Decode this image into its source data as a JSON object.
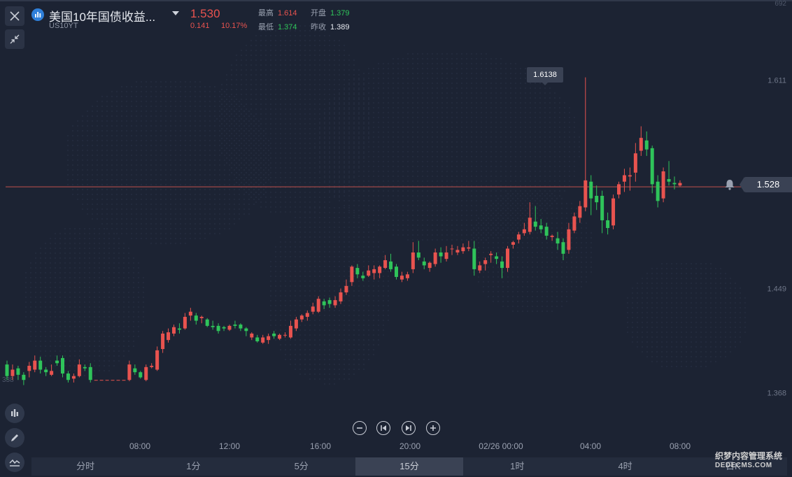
{
  "header": {
    "title": "美国10年国债收益...",
    "symbol": "US10YT",
    "last": "1.530",
    "change": "0.141",
    "change_pct": "10.17%",
    "high_label": "最高",
    "high": "1.614",
    "open_label": "开盘",
    "open": "1.379",
    "low_label": "最低",
    "low": "1.374",
    "prev_close_label": "昨收",
    "prev_close": "1.389"
  },
  "price_tag": "1.528",
  "peak_tooltip": "1.6138",
  "left_edge_label": "338",
  "top_edge_label": "692",
  "timeframes": [
    "分时",
    "1分",
    "5分",
    "15分",
    "1时",
    "4时",
    "日K"
  ],
  "active_timeframe": "15分",
  "watermark": {
    "line1": "织梦内容管理系统",
    "line2": "DEDECMS.COM"
  },
  "colors": {
    "up": "#e8534f",
    "down": "#2fc45a",
    "background": "#1c2333",
    "current_line": "#c0504d"
  },
  "icons": {
    "close": "close-icon",
    "collapse": "collapse-arrows-icon",
    "logo": "bar-chart-logo-icon",
    "indicators": "indicators-icon",
    "draw": "pencil-icon",
    "compare": "compare-icon",
    "zoom_out": "minus-icon",
    "first": "skip-back-icon",
    "last": "skip-forward-icon",
    "zoom_in": "plus-icon",
    "alert": "bell-icon"
  },
  "chart_data": {
    "type": "candlestick",
    "title": "美国10年国债收益...",
    "xlabel": "",
    "ylabel": "",
    "x_ticks": [
      "08:00",
      "12:00",
      "16:00",
      "20:00",
      "02/26 00:00",
      "04:00",
      "08:00"
    ],
    "y_ticks": [
      1.611,
      1.449,
      1.368
    ],
    "ylim": [
      1.32,
      1.672
    ],
    "current_price": 1.528,
    "peak": 1.6138,
    "candles": [
      [
        1.39,
        1.381,
        1.393,
        1.378
      ],
      [
        1.381,
        1.386,
        1.39,
        1.378
      ],
      [
        1.387,
        1.382,
        1.389,
        1.378
      ],
      [
        1.382,
        1.378,
        1.384,
        1.374
      ],
      [
        1.385,
        1.389,
        1.392,
        1.38
      ],
      [
        1.386,
        1.393,
        1.397,
        1.384
      ],
      [
        1.393,
        1.386,
        1.396,
        1.383
      ],
      [
        1.386,
        1.384,
        1.388,
        1.381
      ],
      [
        1.382,
        1.385,
        1.39,
        1.381
      ],
      [
        1.393,
        1.391,
        1.397,
        1.389
      ],
      [
        1.395,
        1.383,
        1.397,
        1.38
      ],
      [
        1.383,
        1.378,
        1.385,
        1.376
      ],
      [
        1.379,
        1.381,
        1.383,
        1.376
      ],
      [
        1.381,
        1.39,
        1.394,
        1.38
      ],
      [
        1.388,
        1.387,
        1.39,
        1.385
      ],
      [
        1.388,
        1.378,
        1.391,
        1.376
      ],
      [
        1.378,
        1.378,
        1.378,
        1.378
      ],
      [
        1.378,
        1.378,
        1.378,
        1.378
      ],
      [
        1.378,
        1.378,
        1.378,
        1.378
      ],
      [
        1.378,
        1.378,
        1.378,
        1.378
      ],
      [
        1.378,
        1.378,
        1.378,
        1.378
      ],
      [
        1.378,
        1.378,
        1.378,
        1.378
      ],
      [
        1.378,
        1.39,
        1.393,
        1.377
      ],
      [
        1.387,
        1.384,
        1.39,
        1.382
      ],
      [
        1.384,
        1.38,
        1.385,
        1.379
      ],
      [
        1.378,
        1.388,
        1.39,
        1.377
      ],
      [
        1.388,
        1.389,
        1.391,
        1.387
      ],
      [
        1.386,
        1.401,
        1.404,
        1.385
      ],
      [
        1.402,
        1.414,
        1.416,
        1.399
      ],
      [
        1.409,
        1.415,
        1.418,
        1.407
      ],
      [
        1.414,
        1.419,
        1.421,
        1.412
      ],
      [
        1.418,
        1.417,
        1.422,
        1.414
      ],
      [
        1.418,
        1.427,
        1.43,
        1.417
      ],
      [
        1.428,
        1.431,
        1.434,
        1.424
      ],
      [
        1.428,
        1.424,
        1.43,
        1.421
      ],
      [
        1.426,
        1.427,
        1.428,
        1.422
      ],
      [
        1.425,
        1.42,
        1.426,
        1.419
      ],
      [
        1.42,
        1.419,
        1.424,
        1.417
      ],
      [
        1.42,
        1.416,
        1.422,
        1.414
      ],
      [
        1.419,
        1.418,
        1.42,
        1.416
      ],
      [
        1.417,
        1.42,
        1.421,
        1.416
      ],
      [
        1.421,
        1.42,
        1.424,
        1.418
      ],
      [
        1.421,
        1.418,
        1.422,
        1.416
      ],
      [
        1.418,
        1.416,
        1.419,
        1.412
      ],
      [
        1.411,
        1.414,
        1.415,
        1.409
      ],
      [
        1.411,
        1.408,
        1.413,
        1.407
      ],
      [
        1.407,
        1.411,
        1.413,
        1.406
      ],
      [
        1.409,
        1.412,
        1.414,
        1.406
      ],
      [
        1.414,
        1.412,
        1.416,
        1.41
      ],
      [
        1.41,
        1.413,
        1.414,
        1.409
      ],
      [
        1.413,
        1.413,
        1.415,
        1.411
      ],
      [
        1.411,
        1.42,
        1.424,
        1.41
      ],
      [
        1.418,
        1.425,
        1.427,
        1.416
      ],
      [
        1.425,
        1.428,
        1.429,
        1.423
      ],
      [
        1.427,
        1.43,
        1.432,
        1.424
      ],
      [
        1.431,
        1.435,
        1.438,
        1.429
      ],
      [
        1.431,
        1.441,
        1.443,
        1.43
      ],
      [
        1.439,
        1.436,
        1.441,
        1.433
      ],
      [
        1.44,
        1.437,
        1.442,
        1.434
      ],
      [
        1.436,
        1.44,
        1.443,
        1.434
      ],
      [
        1.439,
        1.446,
        1.449,
        1.437
      ],
      [
        1.446,
        1.451,
        1.456,
        1.444
      ],
      [
        1.454,
        1.466,
        1.467,
        1.451
      ],
      [
        1.465,
        1.46,
        1.468,
        1.457
      ],
      [
        1.459,
        1.457,
        1.462,
        1.455
      ],
      [
        1.459,
        1.463,
        1.467,
        1.458
      ],
      [
        1.461,
        1.464,
        1.467,
        1.456
      ],
      [
        1.461,
        1.466,
        1.467,
        1.457
      ],
      [
        1.465,
        1.471,
        1.475,
        1.464
      ],
      [
        1.47,
        1.464,
        1.476,
        1.462
      ],
      [
        1.466,
        1.458,
        1.468,
        1.456
      ],
      [
        1.456,
        1.459,
        1.462,
        1.454
      ],
      [
        1.457,
        1.46,
        1.462,
        1.455
      ],
      [
        1.464,
        1.477,
        1.485,
        1.461
      ],
      [
        1.477,
        1.473,
        1.486,
        1.471
      ],
      [
        1.47,
        1.467,
        1.473,
        1.464
      ],
      [
        1.465,
        1.469,
        1.47,
        1.462
      ],
      [
        1.468,
        1.477,
        1.48,
        1.466
      ],
      [
        1.477,
        1.474,
        1.481,
        1.469
      ],
      [
        1.472,
        1.477,
        1.482,
        1.47
      ],
      [
        1.48,
        1.48,
        1.483,
        1.475
      ],
      [
        1.477,
        1.479,
        1.482,
        1.475
      ],
      [
        1.478,
        1.481,
        1.484,
        1.476
      ],
      [
        1.48,
        1.481,
        1.486,
        1.478
      ],
      [
        1.48,
        1.464,
        1.486,
        1.459
      ],
      [
        1.463,
        1.467,
        1.47,
        1.461
      ],
      [
        1.468,
        1.471,
        1.473,
        1.463
      ],
      [
        1.475,
        1.476,
        1.478,
        1.469
      ],
      [
        1.474,
        1.472,
        1.477,
        1.468
      ],
      [
        1.47,
        1.465,
        1.474,
        1.457
      ],
      [
        1.465,
        1.48,
        1.482,
        1.462
      ],
      [
        1.483,
        1.485,
        1.486,
        1.48
      ],
      [
        1.487,
        1.491,
        1.493,
        1.484
      ],
      [
        1.492,
        1.495,
        1.5,
        1.49
      ],
      [
        1.493,
        1.504,
        1.516,
        1.491
      ],
      [
        1.501,
        1.497,
        1.513,
        1.494
      ],
      [
        1.498,
        1.495,
        1.503,
        1.492
      ],
      [
        1.497,
        1.49,
        1.5,
        1.487
      ],
      [
        1.489,
        1.49,
        1.491,
        1.486
      ],
      [
        1.488,
        1.484,
        1.493,
        1.479
      ],
      [
        1.485,
        1.476,
        1.488,
        1.471
      ],
      [
        1.479,
        1.495,
        1.5,
        1.476
      ],
      [
        1.494,
        1.505,
        1.508,
        1.492
      ],
      [
        1.504,
        1.513,
        1.517,
        1.5
      ],
      [
        1.512,
        1.533,
        1.613,
        1.509
      ],
      [
        1.532,
        1.519,
        1.537,
        1.506
      ],
      [
        1.521,
        1.516,
        1.529,
        1.51
      ],
      [
        1.521,
        1.502,
        1.525,
        1.492
      ],
      [
        1.502,
        1.496,
        1.508,
        1.491
      ],
      [
        1.498,
        1.519,
        1.522,
        1.495
      ],
      [
        1.522,
        1.53,
        1.532,
        1.519
      ],
      [
        1.532,
        1.537,
        1.542,
        1.524
      ],
      [
        1.536,
        1.537,
        1.543,
        1.525
      ],
      [
        1.539,
        1.554,
        1.562,
        1.532
      ],
      [
        1.556,
        1.566,
        1.575,
        1.552
      ],
      [
        1.564,
        1.557,
        1.571,
        1.552
      ],
      [
        1.558,
        1.53,
        1.56,
        1.523
      ],
      [
        1.532,
        1.517,
        1.537,
        1.512
      ],
      [
        1.519,
        1.54,
        1.543,
        1.516
      ],
      [
        1.534,
        1.532,
        1.548,
        1.529
      ],
      [
        1.531,
        1.53,
        1.536,
        1.526
      ],
      [
        1.529,
        1.531,
        1.533,
        1.528
      ]
    ]
  }
}
